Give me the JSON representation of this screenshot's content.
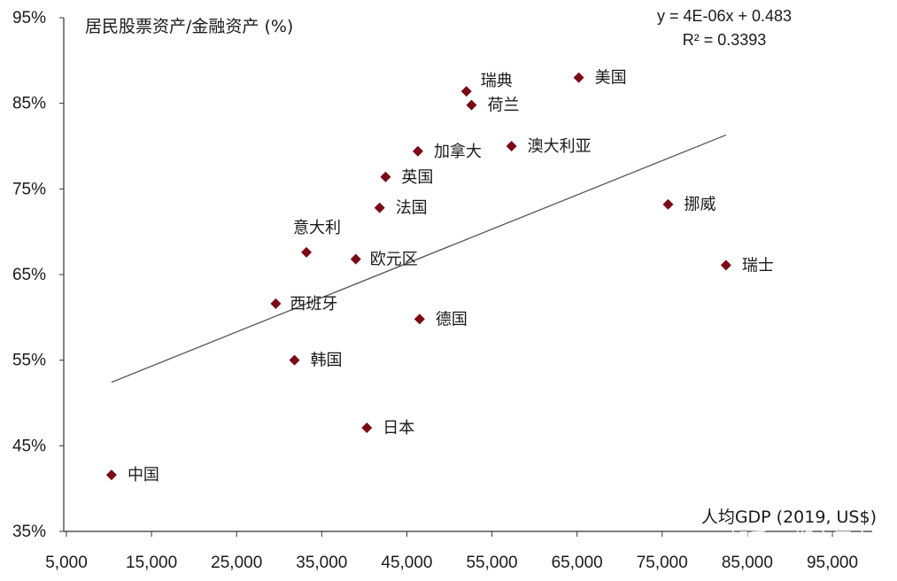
{
  "chart_data": {
    "type": "scatter",
    "ylabel": "居民股票资产/金融资产 (%)",
    "xlabel": "人均GDP (2019, US$)",
    "xlim": [
      5000,
      100000
    ],
    "ylim": [
      35,
      95
    ],
    "x_ticks": [
      5000,
      15000,
      25000,
      35000,
      45000,
      55000,
      65000,
      75000,
      85000,
      95000
    ],
    "x_tick_labels": [
      "5,000",
      "15,000",
      "25,000",
      "35,000",
      "45,000",
      "55,000",
      "65,000",
      "75,000",
      "85,000",
      "95,000"
    ],
    "y_ticks": [
      35,
      45,
      55,
      65,
      75,
      85,
      95
    ],
    "y_tick_labels": [
      "35%",
      "45%",
      "55%",
      "65%",
      "75%",
      "85%",
      "95%"
    ],
    "points": [
      {
        "label": "中国",
        "x": 10300,
        "y": 41.6
      },
      {
        "label": "日本",
        "x": 40300,
        "y": 47.1
      },
      {
        "label": "韩国",
        "x": 31800,
        "y": 55.0
      },
      {
        "label": "西班牙",
        "x": 29600,
        "y": 61.6
      },
      {
        "label": "德国",
        "x": 46500,
        "y": 59.8
      },
      {
        "label": "意大利",
        "x": 33200,
        "y": 67.6
      },
      {
        "label": "欧元区",
        "x": 39000,
        "y": 66.8
      },
      {
        "label": "法国",
        "x": 41800,
        "y": 72.8
      },
      {
        "label": "英国",
        "x": 42500,
        "y": 76.4
      },
      {
        "label": "加拿大",
        "x": 46300,
        "y": 79.4
      },
      {
        "label": "澳大利亚",
        "x": 57300,
        "y": 80.0
      },
      {
        "label": "荷兰",
        "x": 52600,
        "y": 84.8
      },
      {
        "label": "瑞典",
        "x": 52000,
        "y": 86.4
      },
      {
        "label": "美国",
        "x": 65200,
        "y": 88.0
      },
      {
        "label": "挪威",
        "x": 75700,
        "y": 73.2
      },
      {
        "label": "瑞士",
        "x": 82500,
        "y": 66.1
      }
    ],
    "trendline": {
      "equation": "y = 4E-06x + 0.483",
      "r2": "R² = 0.3393",
      "x_start": 10300,
      "x_end": 82500
    },
    "marker_color": "#7a0a14",
    "trend_color": "#555555"
  },
  "watermark": "知乎 @期市平安"
}
